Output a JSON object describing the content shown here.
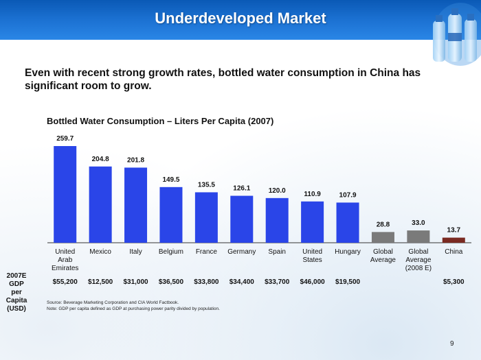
{
  "slide": {
    "title": "Underdeveloped Market",
    "subtitle": "Even with recent strong growth rates, bottled water consumption in China has significant room to grow.",
    "page_number": "9"
  },
  "colors": {
    "banner": "#1565c8",
    "bar_country": "#2a45e8",
    "bar_average": "#7a7a7a",
    "bar_china": "#7a2a22"
  },
  "chart_data": {
    "type": "bar",
    "title": "Bottled Water Consumption – Liters Per Capita (2007)",
    "xlabel": "",
    "ylabel": "",
    "categories": [
      [
        "United",
        "Arab",
        "Emirates"
      ],
      [
        "Mexico"
      ],
      [
        "Italy"
      ],
      [
        "Belgium"
      ],
      [
        "France"
      ],
      [
        "Germany"
      ],
      [
        "Spain"
      ],
      [
        "United",
        "States"
      ],
      [
        "Hungary"
      ],
      [
        "Global",
        "Average"
      ],
      [
        "Global",
        "Average",
        "(2008 E)"
      ],
      [
        "China"
      ]
    ],
    "values": [
      259.7,
      204.8,
      201.8,
      149.5,
      135.5,
      126.1,
      120.0,
      110.9,
      107.9,
      28.8,
      33.0,
      13.7
    ],
    "value_labels": [
      "259.7",
      "204.8",
      "201.8",
      "149.5",
      "135.5",
      "126.1",
      "120.0",
      "110.9",
      "107.9",
      "28.8",
      "33.0",
      "13.7"
    ],
    "bar_groups": [
      "country",
      "country",
      "country",
      "country",
      "country",
      "country",
      "country",
      "country",
      "country",
      "average",
      "average",
      "china"
    ],
    "ylim": [
      0,
      270
    ],
    "grid": false,
    "legend": false
  },
  "gdp": {
    "label": [
      "2007E GDP",
      "per Capita",
      "(USD)"
    ],
    "values": [
      "$55,200",
      "$12,500",
      "$31,000",
      "$36,500",
      "$33,800",
      "$34,400",
      "$33,700",
      "$46,000",
      "$19,500",
      "",
      "",
      "$5,300"
    ]
  },
  "notes": {
    "source": "Source:   Beverage Marketing Corporation and CIA World Factbook.",
    "note": "Note:     GDP per capita defined as GDP at purchasing power parity divided by population."
  }
}
